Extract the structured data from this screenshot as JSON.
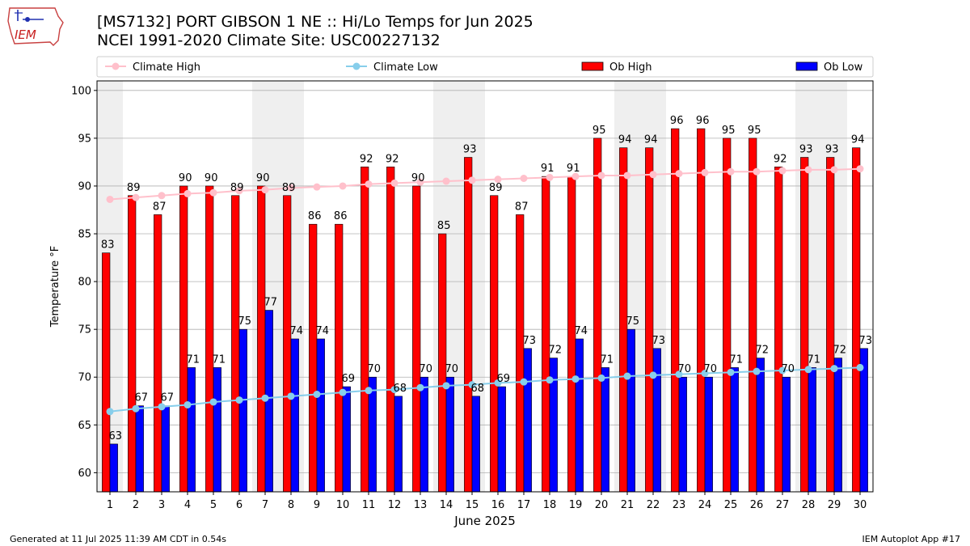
{
  "header": {
    "title_line1": "[MS7132] PORT GIBSON 1 NE :: Hi/Lo Temps for Jun 2025",
    "title_line2": "NCEI 1991-2020 Climate Site: USC00227132",
    "logo_text": "IEM"
  },
  "footer": {
    "generated": "Generated at 11 Jul 2025 11:39 AM CDT in 0.54s",
    "app": "IEM Autoplot App #17"
  },
  "chart_data": {
    "type": "bar",
    "xlabel": "June 2025",
    "ylabel": "Temperature °F",
    "ylim": [
      58,
      101
    ],
    "yticks": [
      60,
      65,
      70,
      75,
      80,
      85,
      90,
      95,
      100
    ],
    "grid": true,
    "legend_position": "top",
    "categories": [
      "1",
      "2",
      "3",
      "4",
      "5",
      "6",
      "7",
      "8",
      "9",
      "10",
      "11",
      "12",
      "13",
      "14",
      "15",
      "16",
      "17",
      "18",
      "19",
      "20",
      "21",
      "22",
      "23",
      "24",
      "25",
      "26",
      "27",
      "28",
      "29",
      "30"
    ],
    "weekend_days": [
      1,
      7,
      8,
      14,
      15,
      21,
      22,
      28,
      29
    ],
    "series": [
      {
        "name": "Climate High",
        "kind": "line",
        "color": "#ffc0cb",
        "values": [
          88.6,
          88.8,
          89.0,
          89.2,
          89.3,
          89.5,
          89.6,
          89.8,
          89.9,
          90.0,
          90.2,
          90.3,
          90.4,
          90.5,
          90.6,
          90.7,
          90.8,
          90.9,
          91.0,
          91.1,
          91.1,
          91.2,
          91.3,
          91.4,
          91.5,
          91.5,
          91.6,
          91.7,
          91.7,
          91.8
        ]
      },
      {
        "name": "Climate Low",
        "kind": "line",
        "color": "#87ceeb",
        "values": [
          66.4,
          66.7,
          66.9,
          67.1,
          67.4,
          67.6,
          67.8,
          68.0,
          68.2,
          68.4,
          68.6,
          68.7,
          68.9,
          69.1,
          69.2,
          69.4,
          69.5,
          69.7,
          69.8,
          69.9,
          70.1,
          70.2,
          70.3,
          70.4,
          70.5,
          70.6,
          70.7,
          70.8,
          70.9,
          71.0
        ]
      },
      {
        "name": "Ob High",
        "kind": "bar",
        "color": "#ff0000",
        "values": [
          83,
          89,
          87,
          90,
          90,
          89,
          90,
          89,
          86,
          86,
          92,
          92,
          90,
          85,
          93,
          89,
          87,
          91,
          91,
          95,
          94,
          94,
          96,
          96,
          95,
          95,
          92,
          93,
          93,
          94
        ]
      },
      {
        "name": "Ob Low",
        "kind": "bar",
        "color": "#0000ff",
        "values": [
          63,
          67,
          67,
          71,
          71,
          75,
          77,
          74,
          74,
          69,
          70,
          68,
          70,
          70,
          68,
          69,
          73,
          72,
          74,
          71,
          75,
          73,
          70,
          70,
          71,
          72,
          70,
          71,
          72,
          73
        ]
      }
    ]
  }
}
